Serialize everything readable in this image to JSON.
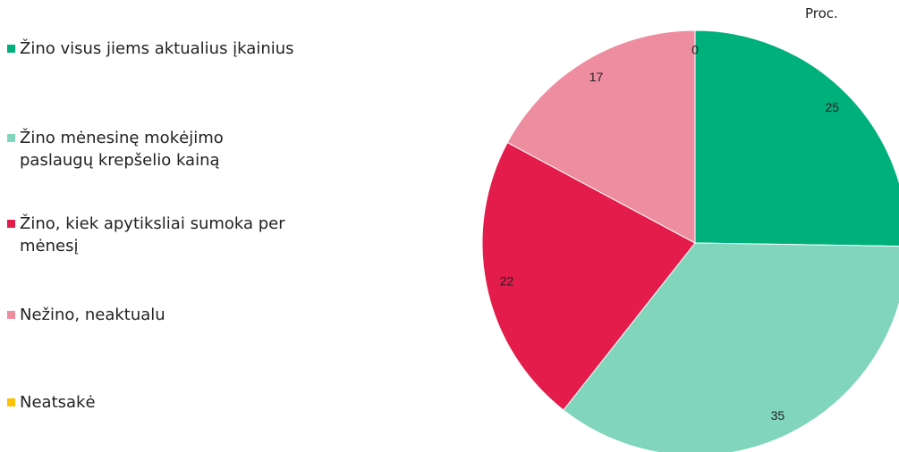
{
  "chart_data": {
    "type": "pie",
    "title": "Proc.",
    "categories": [
      "Žino visus jiems aktualius įkainius",
      "Žino mėnesinę mokėjimo paslaugų krepšelio kainą",
      "Žino, kiek apytiksliai sumoka per mėnesį",
      "Nežino, neaktualu",
      "Neatsakė"
    ],
    "values": [
      25,
      35,
      22,
      17,
      0
    ],
    "colors": [
      "#00b07a",
      "#80d5bb",
      "#e31c4b",
      "#ee8da0",
      "#ffc000"
    ]
  }
}
